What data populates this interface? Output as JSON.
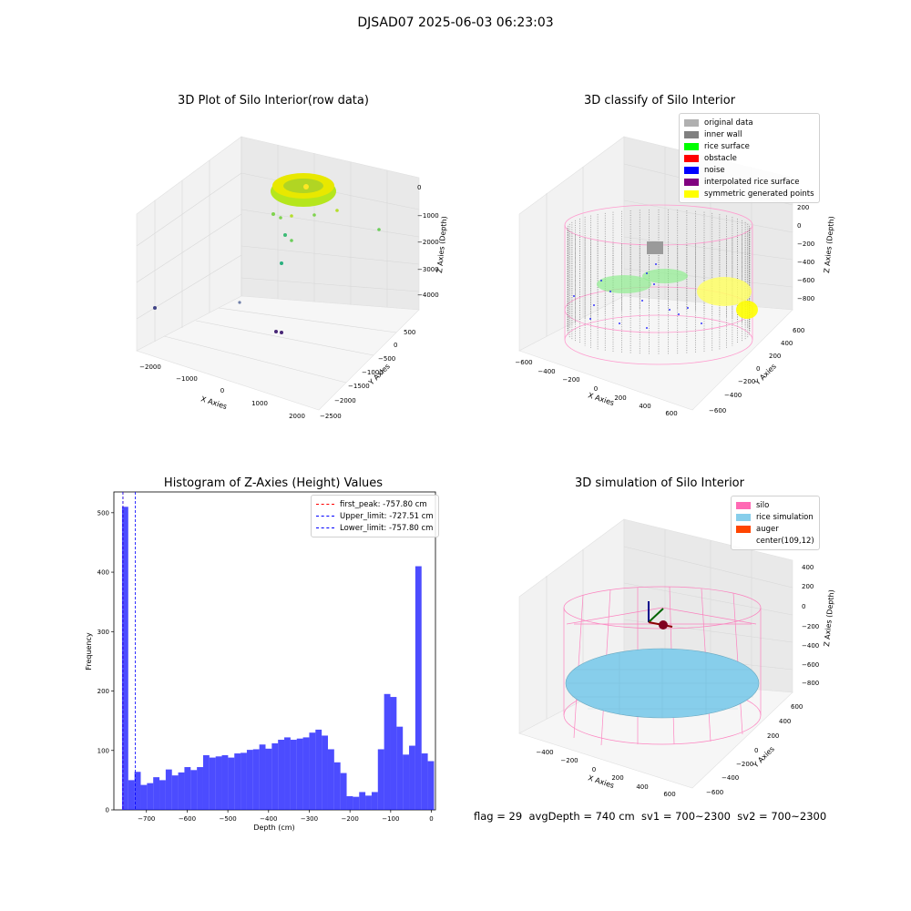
{
  "suptitle": "DJSAD07 2025-06-03 06:23:03",
  "footer": "flag = 29  avgDepth = 740 cm  sv1 = 700~2300  sv2 = 700~2300",
  "panels": {
    "raw": {
      "title": "3D Plot of Silo Interior(row data)",
      "xlabel": "X Axies",
      "ylabel": "Y Axies",
      "zlabel": "Z Axies (Depth)",
      "xticks": [
        "−2000",
        "−1000",
        "0",
        "1000",
        "2000"
      ],
      "yticks": [
        "500",
        "0",
        "−500",
        "−1000",
        "−1500",
        "−2000",
        "−2500"
      ],
      "zticks": [
        "0",
        "−1000",
        "−2000",
        "−3000",
        "−4000"
      ]
    },
    "classify": {
      "title": "3D classify of Silo Interior",
      "xlabel": "X Axies",
      "ylabel": "Y Axies",
      "zlabel": "Z Axies (Depth)",
      "xticks": [
        "−600",
        "−400",
        "−200",
        "0",
        "200",
        "400",
        "600"
      ],
      "yticks": [
        "600",
        "400",
        "200",
        "0",
        "−200",
        "−400",
        "−600"
      ],
      "zticks": [
        "200",
        "0",
        "−200",
        "−400",
        "−600",
        "−800"
      ],
      "legend": [
        {
          "label": "original data",
          "color": "#b0b0b0"
        },
        {
          "label": "inner wall",
          "color": "#808080"
        },
        {
          "label": "rice surface",
          "color": "#00ff00"
        },
        {
          "label": "obstacle",
          "color": "#ff0000"
        },
        {
          "label": "noise",
          "color": "#0000ff"
        },
        {
          "label": "interpolated rice surface",
          "color": "#800080"
        },
        {
          "label": "symmetric generated points",
          "color": "#ffff00"
        }
      ]
    },
    "simulation": {
      "title": "3D simulation of Silo Interior",
      "xlabel": "X Axies",
      "ylabel": "Y Axies",
      "zlabel": "Z Axies (Depth)",
      "xticks": [
        "−400",
        "−200",
        "0",
        "200",
        "400",
        "600"
      ],
      "yticks": [
        "600",
        "400",
        "200",
        "0",
        "−200",
        "−400",
        "−600"
      ],
      "zticks": [
        "400",
        "200",
        "0",
        "−200",
        "−400",
        "−600",
        "−800"
      ],
      "legend": [
        {
          "label": "silo",
          "color": "#ff69b4"
        },
        {
          "label": "rice simulation",
          "color": "#87ceeb"
        },
        {
          "label": "auger",
          "color": "#ff4500"
        },
        {
          "label": "center(109,12)",
          "color": ""
        }
      ]
    }
  },
  "chart_data": {
    "type": "bar",
    "title": "Histogram of Z-Axies (Height) Values",
    "xlabel": "Depth (cm)",
    "ylabel": "Frequency",
    "xlim": [
      -780,
      10
    ],
    "ylim": [
      0,
      535
    ],
    "xticks": [
      -700,
      -600,
      -500,
      -400,
      -300,
      -200,
      -100,
      0
    ],
    "yticks": [
      0,
      100,
      200,
      300,
      400,
      500
    ],
    "bar_color": "#0000ff",
    "bin_start": -760,
    "bin_width": 15.33,
    "values": [
      510,
      50,
      64,
      42,
      45,
      55,
      50,
      68,
      58,
      63,
      72,
      67,
      72,
      92,
      88,
      90,
      92,
      88,
      95,
      96,
      101,
      102,
      110,
      103,
      112,
      118,
      122,
      118,
      120,
      122,
      130,
      135,
      125,
      102,
      80,
      62,
      23,
      22,
      30,
      24,
      30,
      102,
      195,
      190,
      140,
      93,
      108,
      410,
      95,
      82
    ],
    "vlines": [
      {
        "label": "first_peak: -757.80 cm",
        "x": -757.8,
        "color": "#ff0000"
      },
      {
        "label": "Upper_limit: -727.51 cm",
        "x": -727.51,
        "color": "#0000ff"
      },
      {
        "label": "Lower_limit: -757.80 cm",
        "x": -757.8,
        "color": "#0000ff"
      }
    ],
    "legend_position": "upper-right"
  }
}
